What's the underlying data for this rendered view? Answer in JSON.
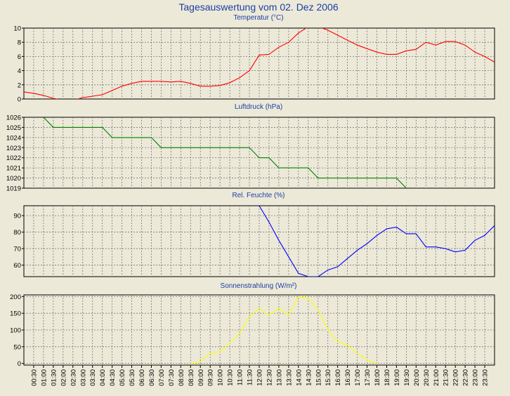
{
  "title": "Tagesauswertung vom 02. Dez 2006",
  "colors": {
    "background": "#ece9d8",
    "title": "#1b3fa6",
    "temperature": "#ff0000",
    "pressure": "#008000",
    "humidity": "#0000ff",
    "radiation": "#ffff00"
  },
  "chart_data": [
    {
      "type": "line",
      "title": "Temperatur (°C)",
      "ylim": [
        0,
        10
      ],
      "yticks": [
        0,
        2,
        4,
        6,
        8,
        10
      ],
      "grid": true,
      "series": [
        {
          "color": "#ff0000",
          "points": [
            [
              0,
              1.0
            ],
            [
              0.5,
              0.8
            ],
            [
              1.0,
              0.5
            ],
            [
              1.5,
              0.1
            ],
            [
              2.0,
              -0.2
            ],
            [
              2.5,
              -0.2
            ],
            [
              3.0,
              0.2
            ],
            [
              3.5,
              0.4
            ],
            [
              4.0,
              0.6
            ],
            [
              4.5,
              1.2
            ],
            [
              5.0,
              1.8
            ],
            [
              5.5,
              2.2
            ],
            [
              6.0,
              2.5
            ],
            [
              6.5,
              2.5
            ],
            [
              7.0,
              2.5
            ],
            [
              7.5,
              2.4
            ],
            [
              8.0,
              2.5
            ],
            [
              8.5,
              2.2
            ],
            [
              9.0,
              1.8
            ],
            [
              9.5,
              1.8
            ],
            [
              10.0,
              1.9
            ],
            [
              10.5,
              2.3
            ],
            [
              11.0,
              3.0
            ],
            [
              11.5,
              4.0
            ],
            [
              12.0,
              6.2
            ],
            [
              12.5,
              6.3
            ],
            [
              13.0,
              7.3
            ],
            [
              13.5,
              8.0
            ],
            [
              14.0,
              9.3
            ],
            [
              14.5,
              10.2
            ],
            [
              15.0,
              10.2
            ],
            [
              15.5,
              9.7
            ],
            [
              16.0,
              9.0
            ],
            [
              16.5,
              8.3
            ],
            [
              17.0,
              7.6
            ],
            [
              17.5,
              7.1
            ],
            [
              18.0,
              6.6
            ],
            [
              18.5,
              6.3
            ],
            [
              19.0,
              6.3
            ],
            [
              19.5,
              6.8
            ],
            [
              20.0,
              7.0
            ],
            [
              20.5,
              8.0
            ],
            [
              21.0,
              7.6
            ],
            [
              21.5,
              8.1
            ],
            [
              22.0,
              8.1
            ],
            [
              22.5,
              7.6
            ],
            [
              23.0,
              6.6
            ],
            [
              23.5,
              6.0
            ],
            [
              24.0,
              5.2
            ]
          ]
        }
      ]
    },
    {
      "type": "line",
      "title": "Luftdruck (hPa)",
      "ylim": [
        1019,
        1026
      ],
      "yticks": [
        1019,
        1020,
        1021,
        1022,
        1023,
        1024,
        1025,
        1026
      ],
      "grid": true,
      "series": [
        {
          "color": "#008000",
          "points": [
            [
              1.0,
              1026
            ],
            [
              1.5,
              1025
            ],
            [
              4.0,
              1025
            ],
            [
              4.5,
              1024
            ],
            [
              6.5,
              1024
            ],
            [
              7.0,
              1023
            ],
            [
              11.5,
              1023
            ],
            [
              12.0,
              1022
            ],
            [
              12.5,
              1022
            ],
            [
              13.0,
              1021
            ],
            [
              14.5,
              1021
            ],
            [
              15.0,
              1020
            ],
            [
              19.0,
              1020
            ],
            [
              19.5,
              1019
            ]
          ]
        }
      ]
    },
    {
      "type": "line",
      "title": "Rel. Feuchte (%)",
      "ylim": [
        53,
        96
      ],
      "yticks": [
        60,
        70,
        80,
        90
      ],
      "grid": true,
      "series": [
        {
          "color": "#0000ff",
          "points": [
            [
              12.0,
              96
            ],
            [
              12.5,
              86
            ],
            [
              13.0,
              75
            ],
            [
              13.5,
              65
            ],
            [
              14.0,
              55
            ],
            [
              14.5,
              53
            ],
            [
              15.0,
              53
            ],
            [
              15.5,
              57
            ],
            [
              16.0,
              59
            ],
            [
              16.5,
              64
            ],
            [
              17.0,
              69
            ],
            [
              17.5,
              73
            ],
            [
              18.0,
              78
            ],
            [
              18.5,
              82
            ],
            [
              19.0,
              83
            ],
            [
              19.5,
              79
            ],
            [
              20.0,
              79
            ],
            [
              20.5,
              71
            ],
            [
              21.0,
              71
            ],
            [
              21.5,
              70
            ],
            [
              22.0,
              68
            ],
            [
              22.5,
              69
            ],
            [
              23.0,
              75
            ],
            [
              23.5,
              78
            ],
            [
              24.0,
              84
            ]
          ]
        }
      ]
    },
    {
      "type": "line",
      "title": "Sonnenstrahlung (W/m²)",
      "ylim": [
        -5,
        205
      ],
      "yticks": [
        0,
        50,
        100,
        150,
        200
      ],
      "grid": true,
      "series": [
        {
          "color": "#ffff00",
          "points": [
            [
              8.5,
              0
            ],
            [
              9.0,
              5
            ],
            [
              9.5,
              30
            ],
            [
              10.0,
              35
            ],
            [
              10.5,
              60
            ],
            [
              11.0,
              90
            ],
            [
              11.5,
              140
            ],
            [
              12.0,
              165
            ],
            [
              12.5,
              145
            ],
            [
              13.0,
              165
            ],
            [
              13.5,
              145
            ],
            [
              14.0,
              200
            ],
            [
              14.5,
              195
            ],
            [
              15.0,
              160
            ],
            [
              15.5,
              100
            ],
            [
              16.0,
              65
            ],
            [
              16.5,
              55
            ],
            [
              17.0,
              30
            ],
            [
              17.5,
              10
            ],
            [
              18.0,
              0
            ]
          ]
        }
      ]
    }
  ],
  "x_ticks": [
    "00:30",
    "01:00",
    "01:30",
    "02:00",
    "02:30",
    "03:00",
    "03:30",
    "04:00",
    "04:30",
    "05:00",
    "05:30",
    "06:00",
    "06:30",
    "07:00",
    "07:30",
    "08:00",
    "08:30",
    "09:00",
    "09:30",
    "10:00",
    "10:30",
    "11:00",
    "11:30",
    "12:00",
    "12:30",
    "13:00",
    "13:30",
    "14:00",
    "14:30",
    "15:00",
    "15:30",
    "16:00",
    "16:30",
    "17:00",
    "17:30",
    "18:00",
    "18:30",
    "19:00",
    "19:30",
    "20:00",
    "20:30",
    "21:00",
    "21:30",
    "22:00",
    "22:30",
    "23:00",
    "23:30"
  ]
}
